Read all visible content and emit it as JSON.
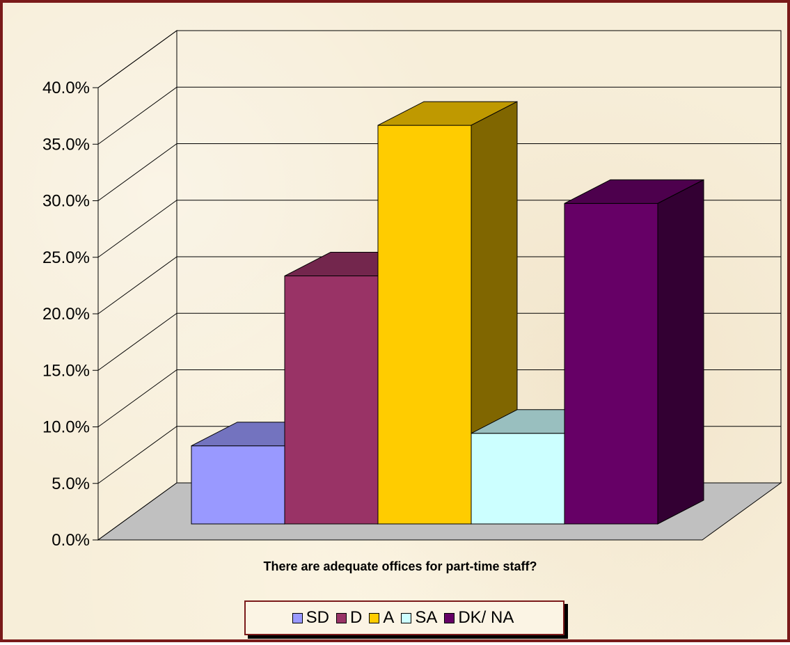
{
  "chart_data": {
    "type": "bar",
    "xlabel": "There are adequate offices for part-time staff?",
    "ylabel": "",
    "ylim": [
      0,
      40
    ],
    "ytick_labels": [
      "0.0%",
      "5.0%",
      "10.0%",
      "15.0%",
      "20.0%",
      "25.0%",
      "30.0%",
      "35.0%",
      "40.0%"
    ],
    "ytick_values": [
      0,
      5,
      10,
      15,
      20,
      25,
      30,
      35,
      40
    ],
    "legend_position": "bottom",
    "grid": true,
    "series": [
      {
        "name": "SD",
        "value": 6.9,
        "color": "#9999ff"
      },
      {
        "name": "D",
        "value": 21.9,
        "color": "#993366"
      },
      {
        "name": "A",
        "value": 35.2,
        "color": "#ffcc00"
      },
      {
        "name": "SA",
        "value": 8.0,
        "color": "#ccffff"
      },
      {
        "name": "DK/ NA",
        "value": 28.3,
        "color": "#660066"
      }
    ]
  }
}
